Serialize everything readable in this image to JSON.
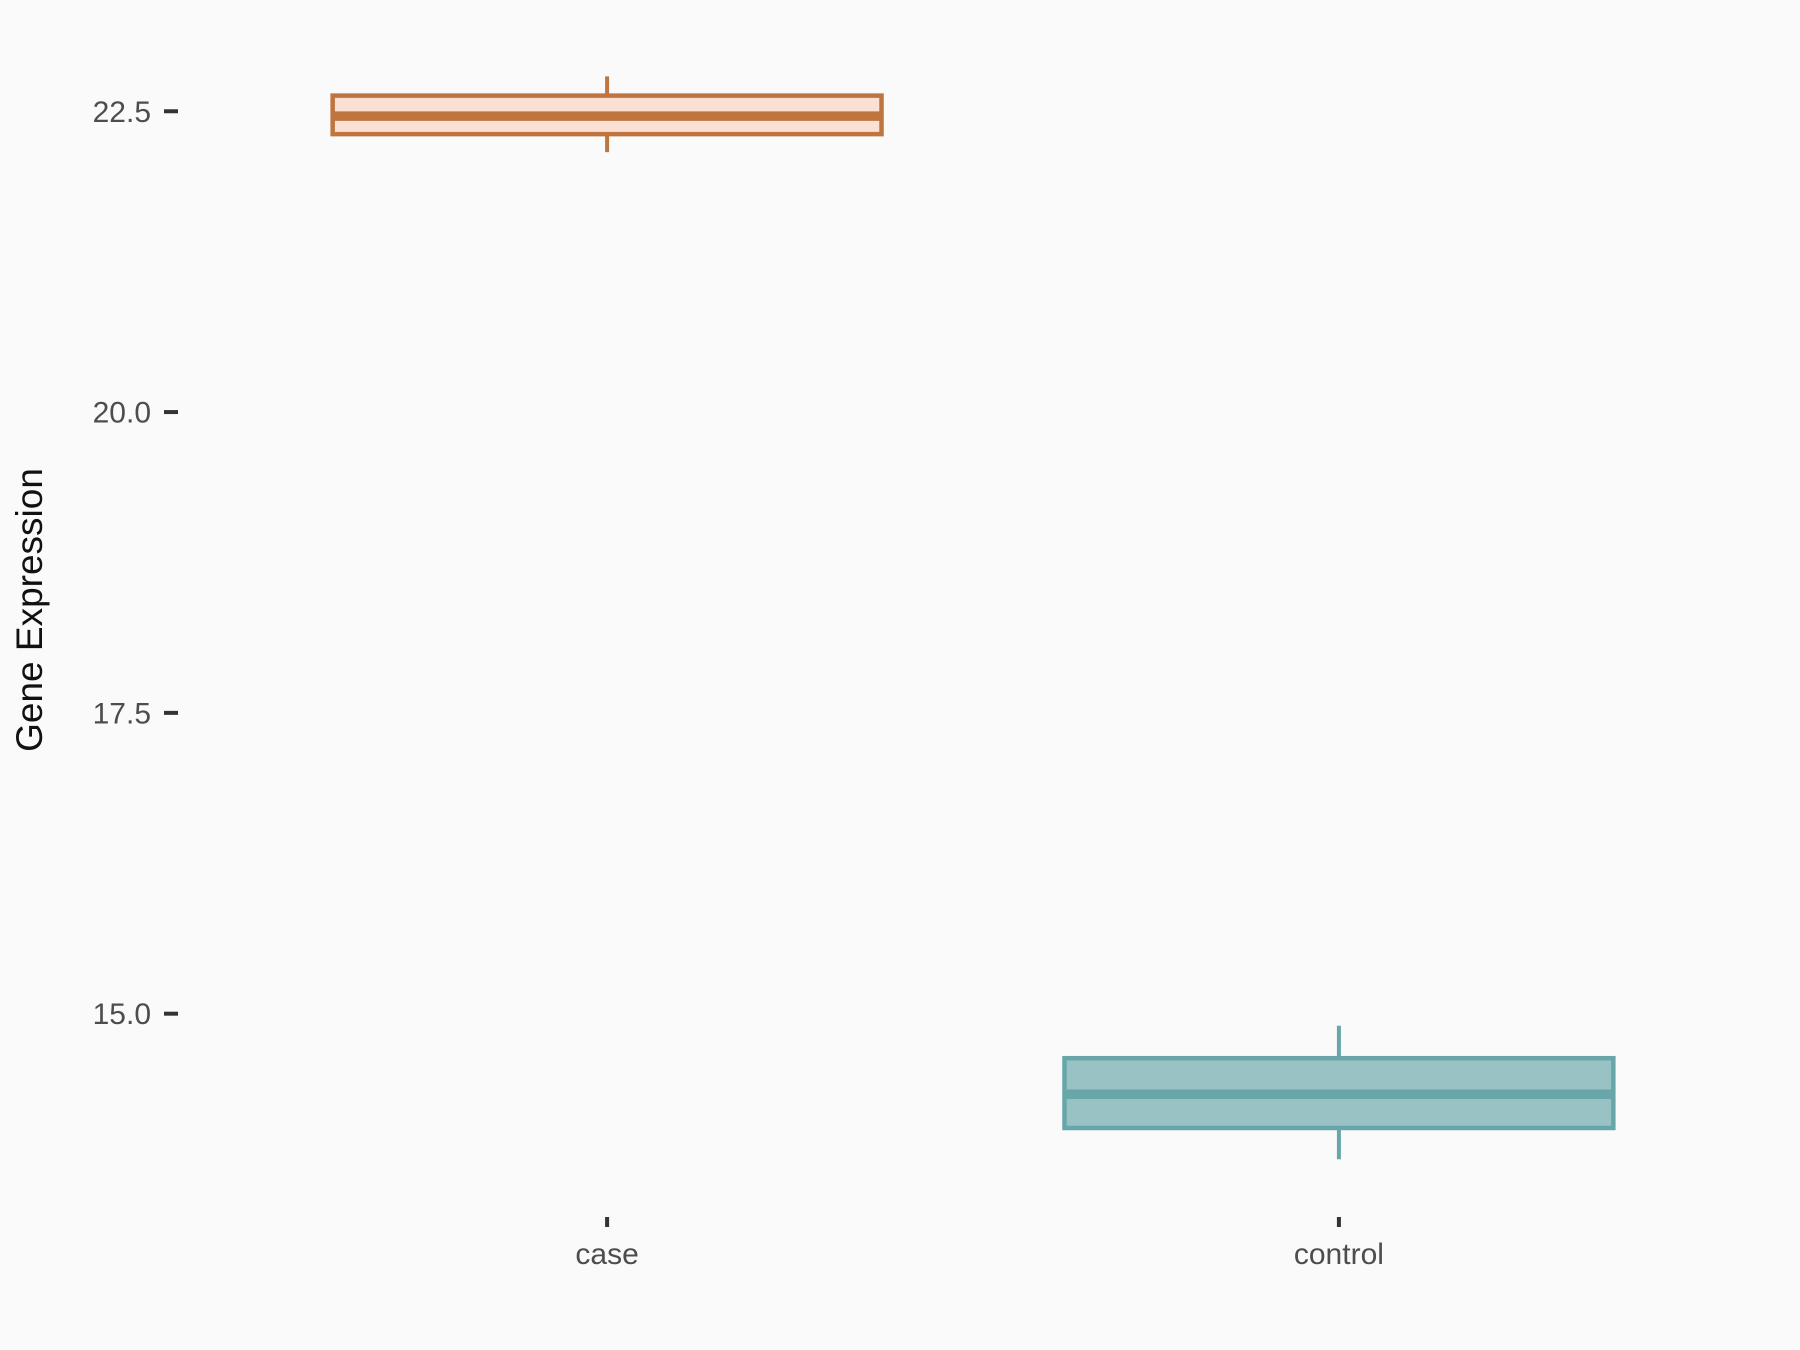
{
  "chart_data": {
    "type": "boxplot",
    "title": "",
    "xlabel": "",
    "ylabel": "Gene Expression",
    "categories": [
      "case",
      "control"
    ],
    "series": [
      {
        "name": "case",
        "min": 22.16,
        "q1": 22.31,
        "median": 22.46,
        "q3": 22.63,
        "max": 22.79,
        "stroke": "#BE7540",
        "fill": "#FCE0D4"
      },
      {
        "name": "control",
        "min": 13.79,
        "q1": 14.05,
        "median": 14.33,
        "q3": 14.63,
        "max": 14.9,
        "stroke": "#68A6AA",
        "fill": "#98C2C4"
      }
    ],
    "y_ticks": [
      22.5,
      20.0,
      17.5,
      15.0
    ],
    "y_tick_labels": [
      "22.5",
      "20.0",
      "17.5",
      "15.0"
    ],
    "ylim": [
      13.41,
      23.3
    ],
    "grid": false,
    "legend": false,
    "style": {
      "background": "#FAFAFA",
      "tick_mark_color": "#333333",
      "tick_label_color": "#4D4D4D",
      "axis_title_color": "#111111"
    }
  }
}
